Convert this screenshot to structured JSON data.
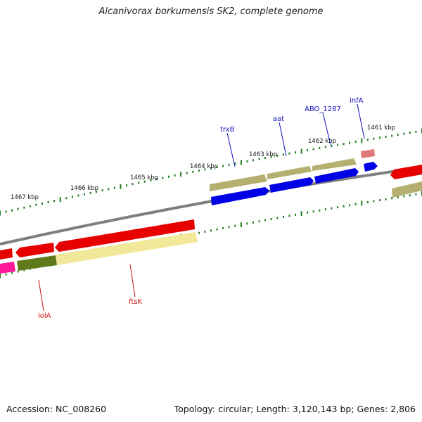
{
  "title": "Alcanivorax borkumensis SK2, complete genome",
  "footer": {
    "accession": "Accession: NC_008260",
    "summary": "Topology: circular; Length: 3,120,143 bp; Genes: 2,806"
  },
  "kbp_labels": [
    "1461 kbp",
    "1462 kbp",
    "1463 kbp",
    "1464 kbp",
    "1465 kbp",
    "1466 kbp",
    "1467 kbp"
  ],
  "gene_labels": [
    {
      "id": "infA",
      "text": "infA",
      "color": "#1010c0"
    },
    {
      "id": "ABO_1287",
      "text": "ABO_1287",
      "color": "#1010c0"
    },
    {
      "id": "aat",
      "text": "aat",
      "color": "#1010c0"
    },
    {
      "id": "trxB",
      "text": "trxB",
      "color": "#1010c0"
    },
    {
      "id": "ftsK",
      "text": "ftsK",
      "color": "#d01010"
    },
    {
      "id": "lolA",
      "text": "lolA",
      "color": "#d01010"
    }
  ],
  "colors": {
    "backbone": "#7f7f7f",
    "tick": "#1f7a1f",
    "forward_cds": "#0000e6",
    "reverse_cds": "#e60000",
    "rna": "#e07878",
    "cog_olive": "#b5b070",
    "cog_dark_olive": "#5f7a1a",
    "cog_pale_yellow": "#f2e89a",
    "cog_magenta": "#ff1a9c"
  }
}
